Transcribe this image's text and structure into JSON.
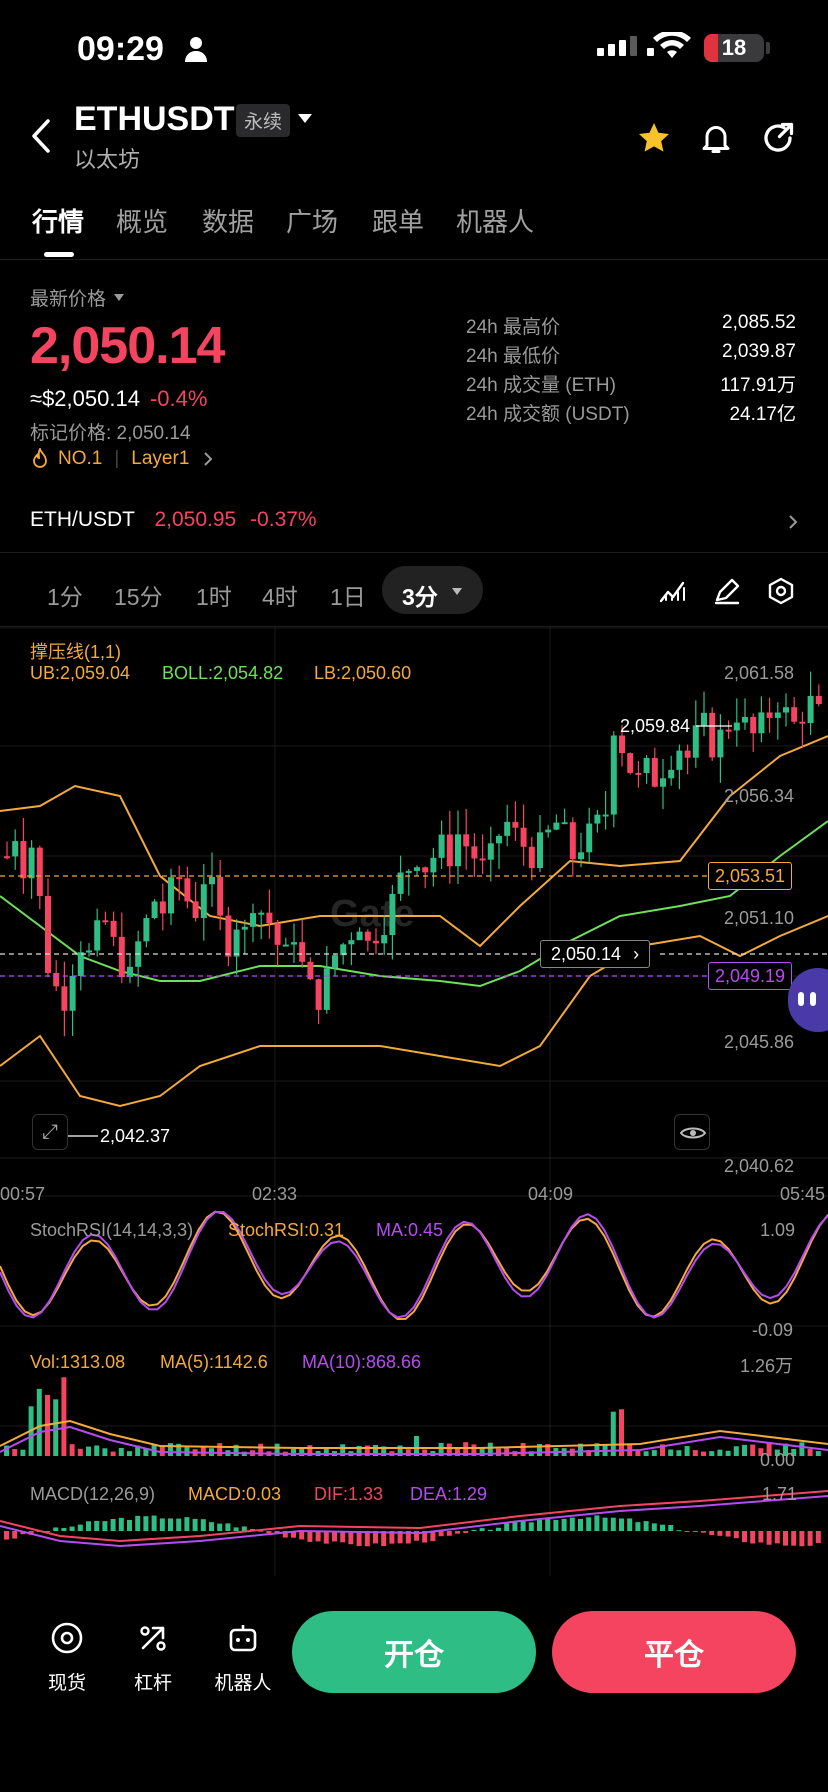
{
  "status_bar": {
    "time": "09:29",
    "battery": "18"
  },
  "header": {
    "symbol": "ETHUSDT",
    "contract_type": "永续",
    "name": "以太坊"
  },
  "tabs": [
    {
      "label": "行情"
    },
    {
      "label": "概览"
    },
    {
      "label": "数据"
    },
    {
      "label": "广场"
    },
    {
      "label": "跟单"
    },
    {
      "label": "机器人"
    }
  ],
  "price": {
    "label": "最新价格",
    "last": "2,050.14",
    "usd": "≈$2,050.14",
    "change": "-0.4%",
    "mark_label": "标记价格: 2,050.14",
    "rank": "NO.1",
    "sector": "Layer1"
  },
  "stats": [
    {
      "label": "24h 最高价",
      "value": "2,085.52"
    },
    {
      "label": "24h 最低价",
      "value": "2,039.87"
    },
    {
      "label": "24h 成交量 (ETH)",
      "value": "117.91万"
    },
    {
      "label": "24h 成交额 (USDT)",
      "value": "24.17亿"
    }
  ],
  "spot_pair": {
    "name": "ETH/USDT",
    "price": "2,050.95",
    "change": "-0.37%"
  },
  "timeframes": [
    {
      "label": "1分"
    },
    {
      "label": "15分"
    },
    {
      "label": "1时"
    },
    {
      "label": "4时"
    },
    {
      "label": "1日"
    },
    {
      "label": "3分"
    }
  ],
  "selected_timeframe": "3分",
  "chart": {
    "indicator_title": "撑压线(1,1)",
    "ub": "UB:2,059.04",
    "boll": "BOLL:2,054.82",
    "lb": "LB:2,050.60",
    "y_ticks": [
      "2,061.58",
      "2,056.34",
      "2,051.10",
      "2,045.86",
      "2,040.62"
    ],
    "x_ticks": [
      "00:57",
      "02:33",
      "04:09",
      "05:45"
    ],
    "high_marker": "2,059.84",
    "low_marker": "2,042.37",
    "current_price": "2,050.14",
    "resistance": "2,053.51",
    "support": "2,049.19",
    "watermark": "Gate",
    "stochrsi": {
      "title": "StochRSI(14,14,3,3)",
      "value": "StochRSI:0.31",
      "ma": "MA:0.45",
      "max": "1.09",
      "min": "-0.09"
    },
    "volume": {
      "title": "Vol:1313.08",
      "ma5": "MA(5):1142.6",
      "ma10": "MA(10):868.66",
      "max": "1.26万",
      "min": "0.00"
    },
    "macd": {
      "title": "MACD(12,26,9)",
      "value": "MACD:0.03",
      "dif": "DIF:1.33",
      "dea": "DEA:1.29",
      "max": "1.71"
    },
    "colors": {
      "up": "#2ebd85",
      "down": "#f5445f",
      "ub": "#f4a93b",
      "boll": "#6ee05a",
      "ma": "#b44cf0"
    }
  },
  "bottom_nav": [
    {
      "label": "现货"
    },
    {
      "label": "杠杆"
    },
    {
      "label": "机器人"
    }
  ],
  "actions": {
    "open": "开仓",
    "close": "平仓"
  }
}
